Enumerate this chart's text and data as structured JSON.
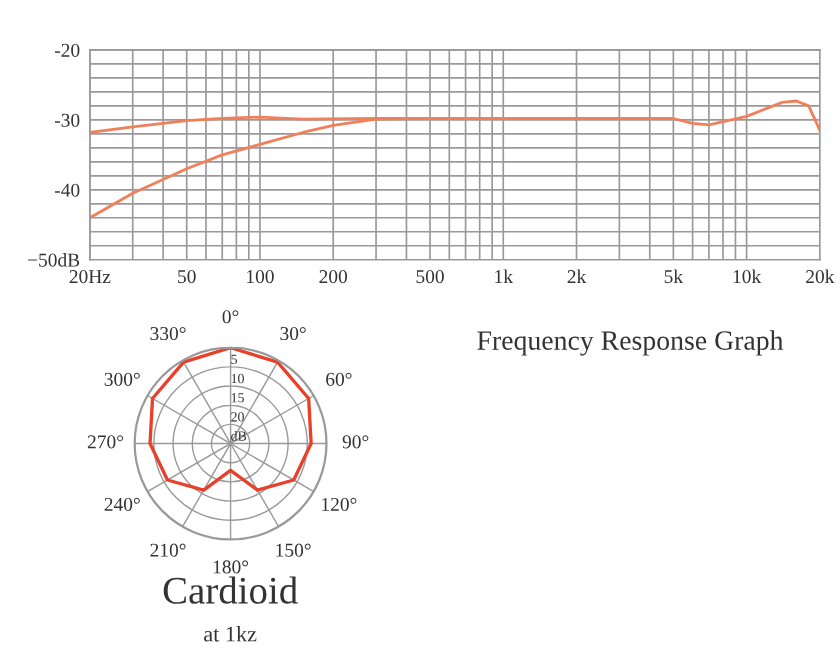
{
  "chart_data": [
    {
      "type": "line",
      "annotations": [
        "Frequency Response Graph"
      ],
      "series": [
        {
          "color": "#f0805a",
          "x": [
            20,
            30,
            50,
            70,
            100,
            150,
            300,
            1000,
            2000,
            5000,
            6000,
            7000,
            10000,
            14000,
            16000,
            18000,
            20000
          ],
          "values": [
            -31.8,
            -31,
            -30.1,
            -29.8,
            -29.6,
            -29.9,
            -29.8,
            -29.8,
            -29.8,
            -29.8,
            -30.5,
            -30.7,
            -29.5,
            -27.5,
            -27.3,
            -28,
            -31.5
          ]
        },
        {
          "color": "#f0805a",
          "x": [
            20,
            30,
            50,
            70,
            100,
            150,
            200,
            300,
            500
          ],
          "values": [
            -44,
            -40.5,
            -37,
            -35,
            -33.5,
            -31.8,
            -30.8,
            -29.9,
            -29.8
          ]
        }
      ],
      "log": "x",
      "xlim": [
        20,
        20000
      ],
      "ylim": [
        -50,
        -20
      ],
      "xticks": [
        {
          "value": 20,
          "label": "20Hz"
        },
        {
          "value": 30,
          "label": null
        },
        {
          "value": 40,
          "label": null
        },
        50,
        {
          "value": 60,
          "label": null
        },
        {
          "value": 70,
          "label": null
        },
        {
          "value": 80,
          "label": null
        },
        {
          "value": 90,
          "label": null
        },
        100,
        200,
        {
          "value": 300,
          "label": null
        },
        {
          "value": 400,
          "label": null
        },
        500,
        {
          "value": 600,
          "label": null
        },
        {
          "value": 700,
          "label": null
        },
        {
          "value": 800,
          "label": null
        },
        {
          "value": 900,
          "label": null
        },
        {
          "value": 1000,
          "label": "1k"
        },
        {
          "value": 2000,
          "label": "2k"
        },
        {
          "value": 3000,
          "label": null
        },
        {
          "value": 4000,
          "label": null
        },
        {
          "value": 5000,
          "label": "5k"
        },
        {
          "value": 6000,
          "label": null
        },
        {
          "value": 7000,
          "label": null
        },
        {
          "value": 8000,
          "label": null
        },
        {
          "value": 9000,
          "label": null
        },
        {
          "value": 10000,
          "label": "10k"
        },
        {
          "value": 20000,
          "label": "20k"
        }
      ],
      "yticks": [
        {
          "value": -50,
          "label": "−50dB"
        },
        {
          "value": -48,
          "label": null
        },
        {
          "value": -46,
          "label": null
        },
        {
          "value": -44,
          "label": null
        },
        {
          "value": -42,
          "label": null
        },
        -40,
        {
          "value": -38,
          "label": null
        },
        {
          "value": -36,
          "label": null
        },
        {
          "value": -34,
          "label": null
        },
        {
          "value": -32,
          "label": null
        },
        -30,
        {
          "value": -28,
          "label": null
        },
        {
          "value": -26,
          "label": null
        },
        {
          "value": -24,
          "label": null
        },
        {
          "value": -22,
          "label": null
        },
        -20
      ],
      "grid": true,
      "line_style": "solid",
      "marker": "none"
    },
    {
      "type": "radar",
      "title": "Cardioid",
      "subtitle": "at 1kz",
      "categories": [
        "0°",
        "30°",
        "60°",
        "90°",
        "120°",
        "150°",
        "180°",
        "210°",
        "240°",
        "270°",
        "300°",
        "330°"
      ],
      "series": [
        {
          "color": "#e8402a",
          "values": [
            0,
            0.5,
            1.5,
            4,
            6,
            11,
            18,
            11,
            6,
            4,
            1.5,
            0.5
          ]
        }
      ],
      "ylim": [
        25,
        0
      ],
      "yticks": [
        5,
        10,
        15,
        20,
        {
          "value": 25,
          "label": "dB"
        }
      ],
      "grid": true,
      "line_style": "solid",
      "marker": "none"
    }
  ]
}
